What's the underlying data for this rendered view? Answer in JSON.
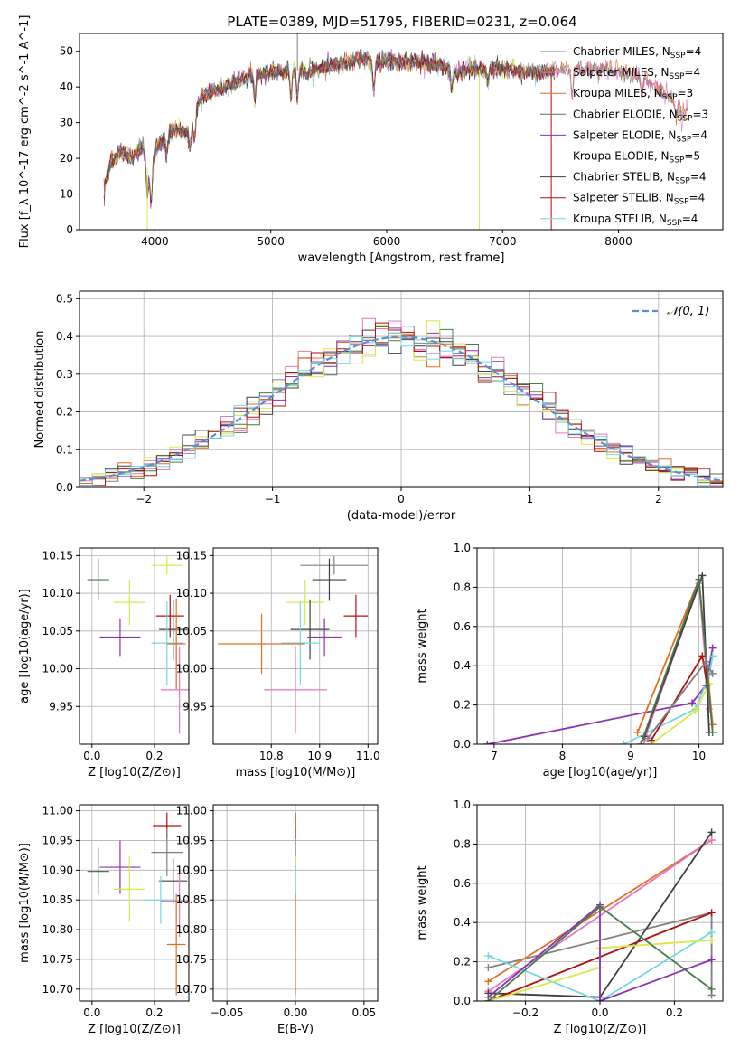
{
  "figure": {
    "title": "PLATE=0389, MJD=51795, FIBERID=0231, z=0.064"
  },
  "series_styles": [
    {
      "name": "Chabrier MILES",
      "nssp": "4",
      "color": "#808080"
    },
    {
      "name": "Salpeter MILES",
      "nssp": "4",
      "color": "#e377c2"
    },
    {
      "name": "Kroupa MILES",
      "nssp": "3",
      "color": "#e07020"
    },
    {
      "name": "Chabrier ELODIE",
      "nssp": "3",
      "color": "#4a7a4a"
    },
    {
      "name": "Salpeter ELODIE",
      "nssp": "4",
      "color": "#8e2fb5"
    },
    {
      "name": "Kroupa ELODIE",
      "nssp": "5",
      "color": "#d8e84a"
    },
    {
      "name": "Chabrier STELIB",
      "nssp": "4",
      "color": "#404040"
    },
    {
      "name": "Salpeter STELIB",
      "nssp": "4",
      "color": "#b01010"
    },
    {
      "name": "Kroupa STELIB",
      "nssp": "4",
      "color": "#70d8e0"
    }
  ],
  "chart_data": [
    {
      "id": "spectrum",
      "type": "line",
      "xlabel": "wavelength [Angstrom, rest frame]",
      "ylabel": "Flux [f_λ 10^-17 erg cm^-2 s^-1 A^-1]",
      "xlim": [
        3350,
        8900
      ],
      "ylim": [
        0,
        55
      ],
      "xticks": [
        4000,
        5000,
        6000,
        7000,
        8000
      ],
      "yticks": [
        0,
        10,
        20,
        30,
        40,
        50
      ],
      "grid": false,
      "legend": "top-right",
      "continuum": [
        [
          3560,
          10
        ],
        [
          3600,
          18
        ],
        [
          3700,
          22
        ],
        [
          3800,
          20
        ],
        [
          3900,
          23
        ],
        [
          3950,
          15
        ],
        [
          4000,
          22
        ],
        [
          4100,
          27
        ],
        [
          4200,
          28
        ],
        [
          4300,
          27
        ],
        [
          4400,
          37
        ],
        [
          4600,
          40
        ],
        [
          4800,
          43
        ],
        [
          5000,
          44
        ],
        [
          5200,
          45
        ],
        [
          5300,
          44
        ],
        [
          5500,
          46
        ],
        [
          5800,
          48
        ],
        [
          5900,
          47
        ],
        [
          6100,
          47
        ],
        [
          6300,
          47
        ],
        [
          6500,
          46
        ],
        [
          6600,
          44
        ],
        [
          6800,
          45
        ],
        [
          7000,
          45
        ],
        [
          7300,
          44
        ],
        [
          7600,
          45
        ],
        [
          7900,
          45
        ],
        [
          8200,
          43
        ],
        [
          8400,
          38
        ],
        [
          8600,
          34
        ]
      ],
      "absorption": [
        [
          3600,
          2
        ],
        [
          3934,
          8
        ],
        [
          3969,
          10
        ],
        [
          4102,
          6
        ],
        [
          4305,
          5
        ],
        [
          4340,
          6
        ],
        [
          4861,
          7
        ],
        [
          5175,
          8
        ],
        [
          5230,
          8
        ],
        [
          5890,
          8
        ],
        [
          6563,
          5
        ],
        [
          6870,
          4
        ],
        [
          7600,
          8
        ],
        [
          8200,
          6
        ],
        [
          8500,
          5
        ],
        [
          8550,
          5
        ]
      ]
    },
    {
      "id": "residuals",
      "type": "histogram",
      "xlabel": "(data-model)/error",
      "ylabel": "Normed distribution",
      "xlim": [
        -2.5,
        2.5
      ],
      "ylim": [
        0,
        0.52
      ],
      "xticks": [
        -2,
        -1,
        0,
        1,
        2
      ],
      "yticks": [
        0.0,
        0.1,
        0.2,
        0.3,
        0.4,
        0.5
      ],
      "grid": true,
      "legend": "top-right",
      "reference_label": "𝒩(0, 1)",
      "bins": 50
    },
    {
      "id": "age-vs-Z",
      "type": "scatter",
      "xlabel": "Z [log10(Z/Z⊙)]",
      "ylabel": "age [log10(age/yr)]",
      "xlim": [
        -0.04,
        0.31
      ],
      "ylim": [
        9.9,
        10.16
      ],
      "xticks": [
        0.0,
        0.2
      ],
      "yticks": [
        9.95,
        10.0,
        10.05,
        10.1,
        10.15
      ],
      "grid": true,
      "points": [
        {
          "x": 0.24,
          "y": 10.137,
          "xerr": 0.05,
          "yerr": 0.012,
          "c": 5
        },
        {
          "x": 0.02,
          "y": 10.118,
          "xerr": 0.035,
          "yerr": 0.028,
          "c": 3
        },
        {
          "x": 0.12,
          "y": 10.088,
          "xerr": 0.05,
          "yerr": 0.03,
          "c": 5
        },
        {
          "x": 0.25,
          "y": 10.07,
          "xerr": 0.045,
          "yerr": 0.028,
          "c": 7
        },
        {
          "x": 0.26,
          "y": 10.052,
          "xerr": 0.045,
          "yerr": 0.04,
          "c": 6
        },
        {
          "x": 0.09,
          "y": 10.042,
          "xerr": 0.065,
          "yerr": 0.025,
          "c": 4
        },
        {
          "x": 0.24,
          "y": 10.034,
          "xerr": 0.05,
          "yerr": 0.055,
          "c": 8
        },
        {
          "x": 0.27,
          "y": 10.033,
          "xerr": 0.03,
          "yerr": 0.06,
          "c": 2
        },
        {
          "x": 0.28,
          "y": 9.972,
          "xerr": 0.06,
          "yerr": 0.058,
          "c": 1
        }
      ]
    },
    {
      "id": "age-vs-mass",
      "type": "scatter",
      "xlabel": "mass [log10(M/M⊙)]",
      "ylabel": "",
      "xlim": [
        10.68,
        11.02
      ],
      "ylim": [
        9.9,
        10.16
      ],
      "xticks": [
        10.8,
        10.9,
        11.0
      ],
      "yticks": [
        9.95,
        10.0,
        10.05,
        10.1,
        10.15
      ],
      "grid": true,
      "points": [
        {
          "x": 10.93,
          "y": 10.137,
          "xerr": 0.07,
          "yerr": 0.012,
          "c": 0
        },
        {
          "x": 10.92,
          "y": 10.118,
          "xerr": 0.035,
          "yerr": 0.028,
          "c": 6
        },
        {
          "x": 10.87,
          "y": 10.088,
          "xerr": 0.04,
          "yerr": 0.03,
          "c": 5
        },
        {
          "x": 10.975,
          "y": 10.07,
          "xerr": 0.025,
          "yerr": 0.028,
          "c": 7
        },
        {
          "x": 10.88,
          "y": 10.052,
          "xerr": 0.04,
          "yerr": 0.04,
          "c": 6
        },
        {
          "x": 10.91,
          "y": 10.042,
          "xerr": 0.035,
          "yerr": 0.025,
          "c": 4
        },
        {
          "x": 10.86,
          "y": 10.034,
          "xerr": 0.04,
          "yerr": 0.055,
          "c": 8
        },
        {
          "x": 10.78,
          "y": 10.033,
          "xerr": 0.09,
          "yerr": 0.04,
          "c": 2
        },
        {
          "x": 10.85,
          "y": 9.972,
          "xerr": 0.065,
          "yerr": 0.058,
          "c": 1
        }
      ]
    },
    {
      "id": "weight-vs-age",
      "type": "line",
      "xlabel": "age [log10(age/yr)]",
      "ylabel": "mass weight",
      "xlim": [
        6.75,
        10.35
      ],
      "ylim": [
        0,
        1.0
      ],
      "xticks": [
        7,
        8,
        9,
        10
      ],
      "yticks": [
        0.0,
        0.2,
        0.4,
        0.6,
        0.8,
        1.0
      ],
      "grid": true,
      "series": [
        {
          "c": 4,
          "x": [
            6.9,
            9.9,
            10.1,
            10.2
          ],
          "y": [
            0.0,
            0.21,
            0.3,
            0.49
          ]
        },
        {
          "c": 8,
          "x": [
            8.9,
            9.95,
            10.15,
            10.2
          ],
          "y": [
            0.0,
            0.18,
            0.35,
            0.45
          ]
        },
        {
          "c": 5,
          "x": [
            9.3,
            9.95,
            10.15
          ],
          "y": [
            0.0,
            0.17,
            0.31
          ]
        },
        {
          "c": 2,
          "x": [
            9.1,
            10.0,
            10.2
          ],
          "y": [
            0.06,
            0.84,
            0.1
          ]
        },
        {
          "c": 1,
          "x": [
            9.2,
            10.0,
            10.15
          ],
          "y": [
            0.02,
            0.82,
            0.18
          ]
        },
        {
          "c": 7,
          "x": [
            9.3,
            10.05,
            10.12
          ],
          "y": [
            0.02,
            0.45,
            0.3
          ]
        },
        {
          "c": 6,
          "x": [
            9.2,
            10.05,
            10.15
          ],
          "y": [
            0.04,
            0.86,
            0.06
          ]
        },
        {
          "c": 3,
          "x": [
            9.15,
            10.0,
            10.2
          ],
          "y": [
            0.0,
            0.84,
            0.06
          ]
        },
        {
          "c": 0,
          "x": [
            9.25,
            10.1,
            10.2
          ],
          "y": [
            0.03,
            0.42,
            0.36
          ]
        }
      ]
    },
    {
      "id": "mass-vs-Z",
      "type": "scatter",
      "xlabel": "Z [log10(Z/Z⊙)]",
      "ylabel": "mass [log10(M/M⊙)]",
      "xlim": [
        -0.04,
        0.31
      ],
      "ylim": [
        10.68,
        11.01
      ],
      "xticks": [
        0.0,
        0.2
      ],
      "yticks": [
        10.7,
        10.75,
        10.8,
        10.85,
        10.9,
        10.95,
        11.0
      ],
      "grid": true,
      "points": [
        {
          "x": 0.24,
          "y": 10.975,
          "xerr": 0.045,
          "yerr": 0.022,
          "c": 7
        },
        {
          "x": 0.24,
          "y": 10.93,
          "xerr": 0.05,
          "yerr": 0.04,
          "c": 0
        },
        {
          "x": 0.09,
          "y": 10.905,
          "xerr": 0.065,
          "yerr": 0.045,
          "c": 4
        },
        {
          "x": 0.02,
          "y": 10.898,
          "xerr": 0.035,
          "yerr": 0.04,
          "c": 3
        },
        {
          "x": 0.26,
          "y": 10.882,
          "xerr": 0.045,
          "yerr": 0.038,
          "c": 6
        },
        {
          "x": 0.12,
          "y": 10.868,
          "xerr": 0.05,
          "yerr": 0.055,
          "c": 5
        },
        {
          "x": 0.22,
          "y": 10.85,
          "xerr": 0.05,
          "yerr": 0.04,
          "c": 8
        },
        {
          "x": 0.28,
          "y": 10.848,
          "xerr": 0.06,
          "yerr": 0.06,
          "c": 1
        },
        {
          "x": 0.27,
          "y": 10.775,
          "xerr": 0.03,
          "yerr": 0.085,
          "c": 2
        }
      ]
    },
    {
      "id": "mass-vs-ebv",
      "type": "scatter",
      "xlabel": "E(B-V)",
      "ylabel": "",
      "xlim": [
        -0.06,
        0.06
      ],
      "ylim": [
        10.68,
        11.01
      ],
      "xticks": [
        -0.05,
        0.0,
        0.05
      ],
      "yticks": [
        10.7,
        10.75,
        10.8,
        10.85,
        10.9,
        10.95,
        11.0
      ],
      "grid": true,
      "points": [
        {
          "x": 0.0,
          "y": 10.905,
          "xerr": 0,
          "yerr": 0.045,
          "c": 4
        },
        {
          "x": 0.0,
          "y": 10.93,
          "xerr": 0,
          "yerr": 0.04,
          "c": 0
        },
        {
          "x": 0.0,
          "y": 10.975,
          "xerr": 0,
          "yerr": 0.022,
          "c": 7
        },
        {
          "x": 0.0,
          "y": 10.868,
          "xerr": 0,
          "yerr": 0.055,
          "c": 5
        },
        {
          "x": 0.0,
          "y": 10.848,
          "xerr": 0,
          "yerr": 0.06,
          "c": 8
        },
        {
          "x": 0.0,
          "y": 10.775,
          "xerr": 0,
          "yerr": 0.085,
          "c": 2
        }
      ]
    },
    {
      "id": "weight-vs-Z",
      "type": "line",
      "xlabel": "Z [log10(Z/Z⊙)]",
      "ylabel": "mass weight",
      "xlim": [
        -0.33,
        0.33
      ],
      "ylim": [
        0,
        1.0
      ],
      "xticks": [
        -0.2,
        0.0,
        0.2
      ],
      "yticks": [
        0.0,
        0.2,
        0.4,
        0.6,
        0.8,
        1.0
      ],
      "grid": true,
      "series": [
        {
          "c": 0,
          "x": [
            -0.3,
            0.3,
            0.3
          ],
          "y": [
            0.17,
            0.45,
            0.03
          ]
        },
        {
          "c": 2,
          "x": [
            -0.3,
            0.3
          ],
          "y": [
            0.1,
            0.82
          ]
        },
        {
          "c": 1,
          "x": [
            -0.3,
            0.3
          ],
          "y": [
            0.05,
            0.82
          ]
        },
        {
          "c": 6,
          "x": [
            -0.3,
            0.0,
            0.3
          ],
          "y": [
            0.04,
            0.02,
            0.86
          ]
        },
        {
          "c": 7,
          "x": [
            -0.3,
            0.3
          ],
          "y": [
            0.0,
            0.45
          ]
        },
        {
          "c": 8,
          "x": [
            -0.3,
            0.0,
            0.3
          ],
          "y": [
            0.23,
            0.0,
            0.35
          ]
        },
        {
          "c": 5,
          "x": [
            -0.3,
            0.0,
            0.0,
            0.3
          ],
          "y": [
            0.0,
            0.17,
            0.27,
            0.31
          ]
        },
        {
          "c": 4,
          "x": [
            -0.3,
            0.0,
            0.0,
            0.3
          ],
          "y": [
            0.02,
            0.49,
            0.0,
            0.21
          ]
        },
        {
          "c": 3,
          "x": [
            -0.3,
            0.0,
            0.3
          ],
          "y": [
            0.0,
            0.48,
            0.06
          ]
        }
      ]
    }
  ]
}
